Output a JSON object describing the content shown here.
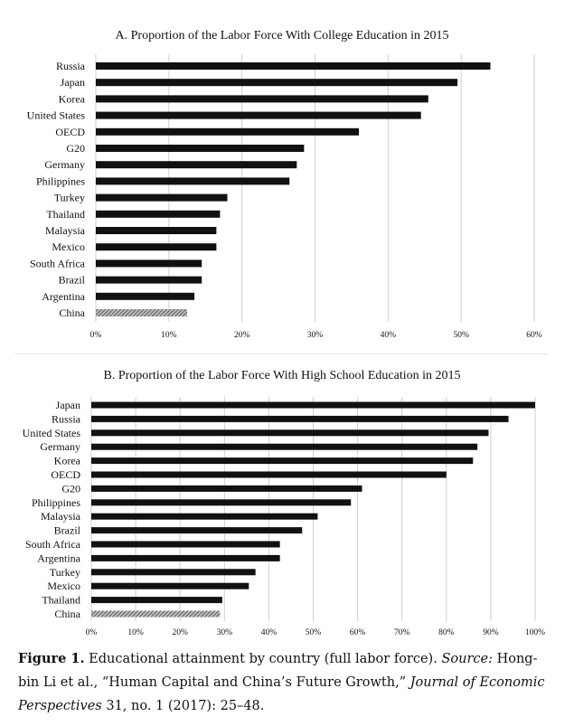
{
  "chart_data": [
    {
      "type": "bar",
      "orientation": "horizontal",
      "title": "A. Proportion of the Labor Force With College Education in 2015",
      "xlabel": "",
      "ylabel": "",
      "xlim": [
        0,
        60
      ],
      "ticks": [
        "0%",
        "10%",
        "20%",
        "30%",
        "40%",
        "50%",
        "60%"
      ],
      "categories": [
        "Russia",
        "Japan",
        "Korea",
        "United States",
        "OECD",
        "G20",
        "Germany",
        "Philippines",
        "Turkey",
        "Thailand",
        "Malaysia",
        "Mexico",
        "South Africa",
        "Brazil",
        "Argentina",
        "China"
      ],
      "values": [
        54,
        49.5,
        45.5,
        44.5,
        36,
        28.5,
        27.5,
        26.5,
        18,
        17,
        16.5,
        16.5,
        14.5,
        14.5,
        13.5,
        12.5
      ],
      "highlight": "China",
      "grid": true
    },
    {
      "type": "bar",
      "orientation": "horizontal",
      "title": "B. Proportion of the Labor Force With High School Education in 2015",
      "xlabel": "",
      "ylabel": "",
      "xlim": [
        0,
        100
      ],
      "ticks": [
        "0%",
        "10%",
        "20%",
        "30%",
        "40%",
        "50%",
        "60%",
        "70%",
        "80%",
        "90%",
        "100%"
      ],
      "categories": [
        "Japan",
        "Russia",
        "United States",
        "Germany",
        "Korea",
        "OECD",
        "G20",
        "Philippines",
        "Malaysia",
        "Brazil",
        "South Africa",
        "Argentina",
        "Turkey",
        "Mexico",
        "Thailand",
        "China"
      ],
      "values": [
        100,
        94,
        89.5,
        87,
        86,
        80,
        61,
        58.5,
        51,
        47.5,
        42.5,
        42.5,
        37,
        35.5,
        29.5,
        29
      ],
      "highlight": "China",
      "grid": true
    }
  ],
  "caption": {
    "label": "Figure 1.",
    "text": " Educational attainment by country (full labor force). ",
    "source_label": "Source:",
    "source_text": " Hong-bin Li et al., “Human Capital and China’s Future Growth,” ",
    "journal": "Journal of Economic Perspectives",
    "citation": " 31, no. 1 (2017): 25–48."
  },
  "colors": {
    "bar": "#111111",
    "highlight_bar": "#8a8a8a",
    "grid": "#cfcfcf"
  }
}
